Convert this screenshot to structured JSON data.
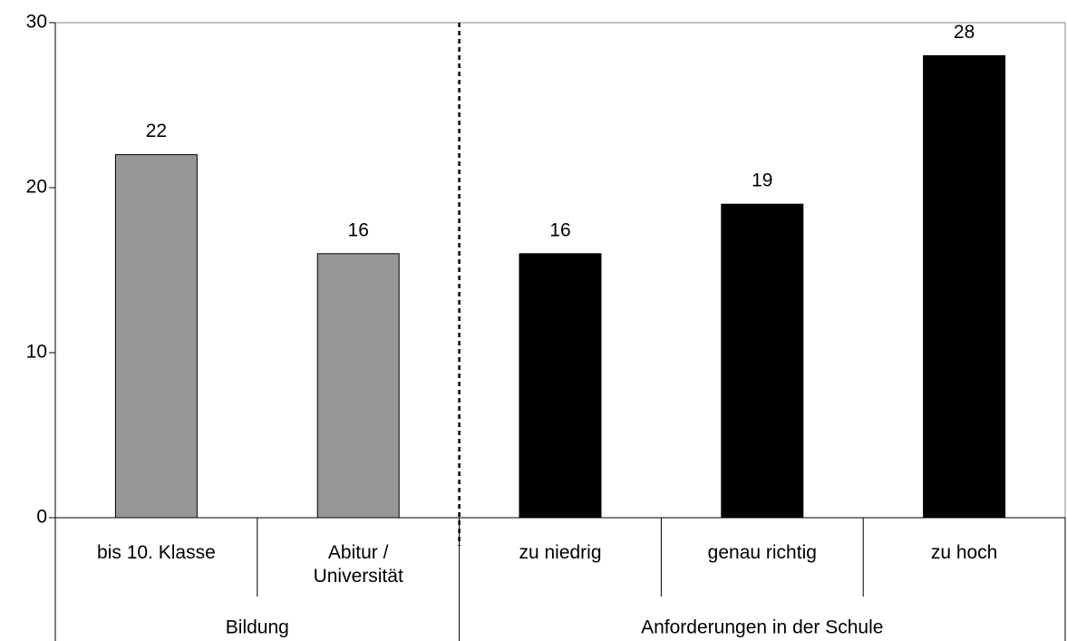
{
  "chart_data": {
    "type": "bar",
    "groups": [
      {
        "name": "Bildung",
        "color": "#969696",
        "categories": [
          "bis 10. Klasse",
          "Abitur /\nUniversität"
        ],
        "values": [
          22,
          16
        ]
      },
      {
        "name": "Anforderungen in der Schule",
        "color": "#000000",
        "categories": [
          "zu niedrig",
          "genau richtig",
          "zu hoch"
        ],
        "values": [
          16,
          19,
          28
        ]
      }
    ],
    "ylim": [
      0,
      30
    ],
    "yticks": [
      0,
      10,
      20,
      30
    ],
    "grid": false
  }
}
